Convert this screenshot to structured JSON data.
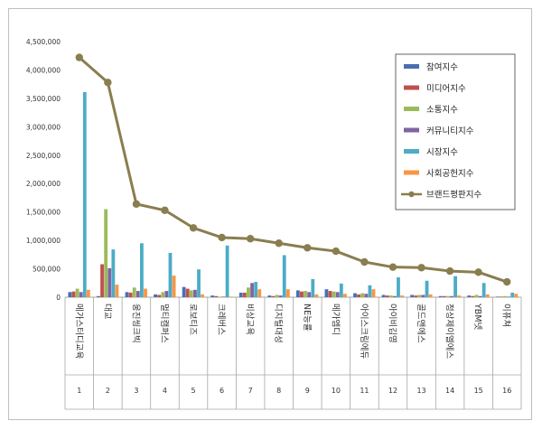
{
  "chart_data": {
    "type": "bar",
    "title": "",
    "xlabel": "",
    "ylabel": "",
    "ylim": [
      0,
      4500000
    ],
    "yticks": [
      "0",
      "500,000",
      "1,000,000",
      "1,500,000",
      "2,000,000",
      "2,500,000",
      "3,000,000",
      "3,500,000",
      "4,000,000",
      "4,500,000"
    ],
    "grid": false,
    "legend_position": "top-right",
    "categories": [
      "메가스터디교육",
      "대교",
      "웅진씽크빅",
      "멀티캠퍼스",
      "로보티즈",
      "크레버스",
      "비상교육",
      "디지털대성",
      "NE능률",
      "메가엠디",
      "아이스크림에듀",
      "아이비김영",
      "골드앤에스",
      "정상제이엘에스",
      "YBM넷",
      "이퓨쳐"
    ],
    "ranks": [
      "1",
      "2",
      "3",
      "4",
      "5",
      "6",
      "7",
      "8",
      "9",
      "10",
      "11",
      "12",
      "13",
      "14",
      "15",
      "16"
    ],
    "series": [
      {
        "name": "참여지수",
        "color": "#4a6fb0",
        "kind": "bar",
        "values": [
          90000,
          20000,
          90000,
          50000,
          180000,
          30000,
          80000,
          30000,
          120000,
          140000,
          70000,
          40000,
          40000,
          20000,
          30000,
          10000
        ]
      },
      {
        "name": "미디어지수",
        "color": "#c0504d",
        "kind": "bar",
        "values": [
          100000,
          580000,
          80000,
          40000,
          150000,
          20000,
          80000,
          20000,
          100000,
          110000,
          50000,
          30000,
          30000,
          20000,
          20000,
          10000
        ]
      },
      {
        "name": "소통지수",
        "color": "#9bbb59",
        "kind": "bar",
        "values": [
          150000,
          1550000,
          170000,
          90000,
          120000,
          10000,
          170000,
          40000,
          110000,
          100000,
          70000,
          30000,
          40000,
          20000,
          40000,
          20000
        ]
      },
      {
        "name": "커뮤니티지수",
        "color": "#8064a2",
        "kind": "bar",
        "values": [
          90000,
          510000,
          110000,
          110000,
          130000,
          10000,
          250000,
          30000,
          90000,
          90000,
          60000,
          20000,
          40000,
          20000,
          20000,
          10000
        ]
      },
      {
        "name": "시장지수",
        "color": "#4bacc6",
        "kind": "bar",
        "values": [
          3610000,
          840000,
          950000,
          780000,
          490000,
          910000,
          270000,
          740000,
          320000,
          240000,
          210000,
          350000,
          290000,
          370000,
          250000,
          80000
        ]
      },
      {
        "name": "사회공헌지수",
        "color": "#f79646",
        "kind": "bar",
        "values": [
          130000,
          220000,
          150000,
          380000,
          50000,
          10000,
          140000,
          140000,
          50000,
          60000,
          140000,
          30000,
          50000,
          30000,
          50000,
          60000
        ]
      },
      {
        "name": "브랜드평판지수",
        "color": "#8a7d4f",
        "kind": "line",
        "values": [
          4220000,
          3780000,
          1640000,
          1530000,
          1220000,
          1050000,
          1030000,
          950000,
          870000,
          810000,
          620000,
          530000,
          520000,
          460000,
          440000,
          270000
        ]
      }
    ]
  }
}
